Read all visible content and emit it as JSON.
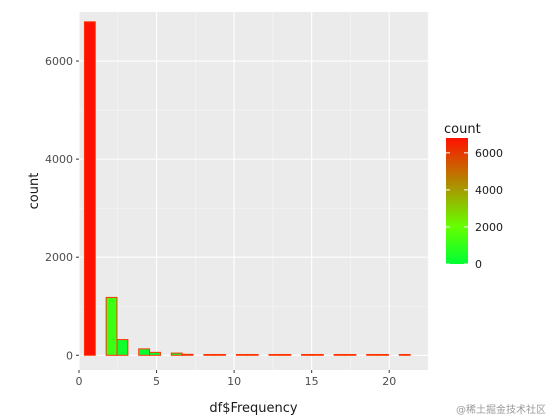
{
  "chart_data": {
    "type": "bar",
    "xlabel": "df$Frequency",
    "ylabel": "count",
    "xlim": [
      0,
      22.5
    ],
    "ylim": [
      -300,
      7000
    ],
    "x_ticks": [
      0,
      5,
      10,
      15,
      20
    ],
    "y_ticks": [
      0,
      2000,
      4000,
      6000
    ],
    "bin_width": 0.7,
    "x": [
      0.7,
      2.1,
      2.8,
      4.2,
      4.9,
      6.3,
      7.0,
      8.4,
      9.1,
      10.5,
      11.2,
      12.6,
      13.3,
      14.7,
      15.4,
      16.8,
      17.5,
      18.9,
      19.6,
      21.0
    ],
    "values": [
      6800,
      1180,
      320,
      130,
      60,
      45,
      20,
      10,
      5,
      3,
      2,
      2,
      1,
      1,
      1,
      1,
      1,
      1,
      1,
      1
    ],
    "grid": true,
    "legend": {
      "title": "count",
      "position": "right",
      "breaks": [
        0,
        2000,
        4000,
        6000
      ],
      "gradient_low": "#00ff33",
      "gradient_mid": "#66ff00",
      "gradient_high": "#ff1100"
    },
    "colors": {
      "panel": "#ebebeb",
      "grid_major": "#ffffff",
      "bar_outline": "#ff3300"
    }
  },
  "watermark": "@稀土掘金技术社区"
}
